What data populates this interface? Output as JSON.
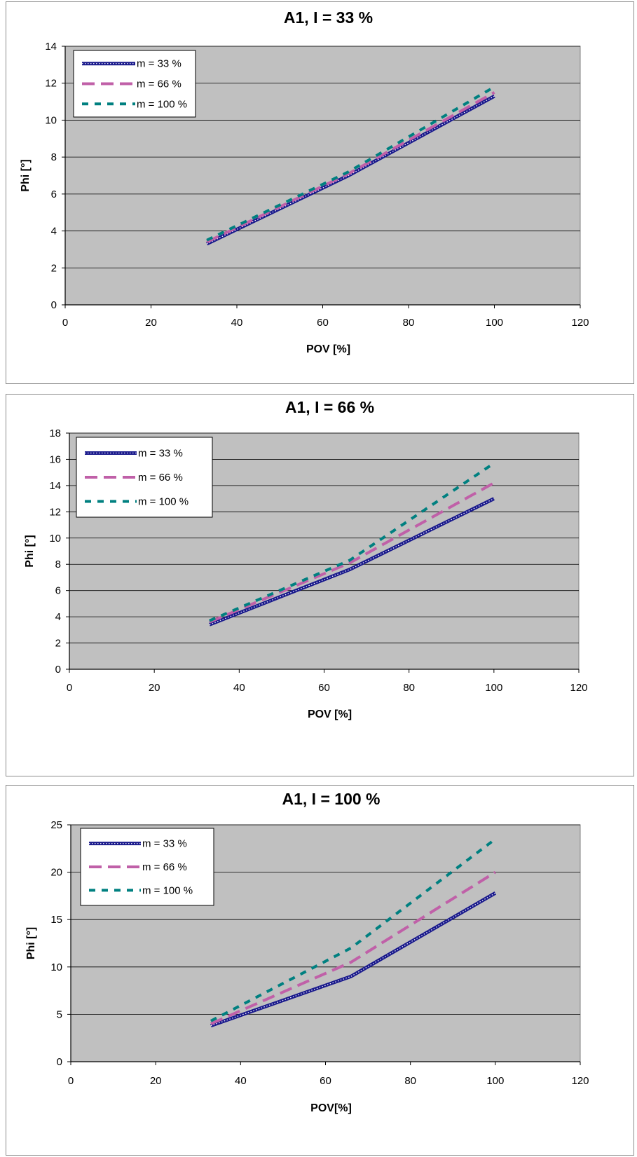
{
  "chart_data": [
    {
      "type": "line",
      "title": "A1, I = 33 %",
      "xlabel": "POV [%]",
      "ylabel": "Phi [°]",
      "xlim": [
        0,
        120
      ],
      "ylim": [
        0,
        14
      ],
      "xticks": [
        "0",
        "20",
        "40",
        "60",
        "80",
        "100",
        "120"
      ],
      "yticks": [
        "0",
        "2",
        "4",
        "6",
        "8",
        "10",
        "12",
        "14"
      ],
      "grid": true,
      "legend": "top-left",
      "series": [
        {
          "name": "m = 33 %",
          "color": "#1a1a8c",
          "x": [
            33,
            66,
            100
          ],
          "y": [
            3.3,
            7.0,
            11.3
          ]
        },
        {
          "name": "m = 66 %",
          "color": "#c060a8",
          "x": [
            33,
            66,
            100
          ],
          "y": [
            3.4,
            7.1,
            11.5
          ]
        },
        {
          "name": "m = 100 %",
          "color": "#008080",
          "x": [
            33,
            66,
            100
          ],
          "y": [
            3.5,
            7.2,
            11.8
          ]
        }
      ]
    },
    {
      "type": "line",
      "title": "A1,  I = 66 %",
      "xlabel": "POV [%]",
      "ylabel": "Phi [°]",
      "xlim": [
        0,
        120
      ],
      "ylim": [
        0,
        18
      ],
      "xticks": [
        "0",
        "20",
        "40",
        "60",
        "80",
        "100",
        "120"
      ],
      "yticks": [
        "0",
        "2",
        "4",
        "6",
        "8",
        "10",
        "12",
        "14",
        "16",
        "18"
      ],
      "grid": true,
      "legend": "top-left",
      "series": [
        {
          "name": "m = 33 %",
          "color": "#1a1a8c",
          "x": [
            33,
            66,
            100
          ],
          "y": [
            3.4,
            7.6,
            13.0
          ]
        },
        {
          "name": "m = 66 %",
          "color": "#c060a8",
          "x": [
            33,
            66,
            100
          ],
          "y": [
            3.6,
            8.1,
            14.2
          ]
        },
        {
          "name": "m = 100 %",
          "color": "#008080",
          "x": [
            33,
            66,
            100
          ],
          "y": [
            3.7,
            8.3,
            15.7
          ]
        }
      ]
    },
    {
      "type": "line",
      "title": "A1,  I = 100 %",
      "xlabel": "POV[%]",
      "ylabel": "Phi [°]",
      "xlim": [
        0,
        120
      ],
      "ylim": [
        0,
        25
      ],
      "xticks": [
        "0",
        "20",
        "40",
        "60",
        "80",
        "100",
        "120"
      ],
      "yticks": [
        "0",
        "5",
        "10",
        "15",
        "20",
        "25"
      ],
      "grid": true,
      "legend": "top-left",
      "series": [
        {
          "name": "m = 33 %",
          "color": "#1a1a8c",
          "x": [
            33,
            66,
            100
          ],
          "y": [
            3.8,
            9.0,
            17.8
          ]
        },
        {
          "name": "m = 66 %",
          "color": "#c060a8",
          "x": [
            33,
            66,
            100
          ],
          "y": [
            4.0,
            10.5,
            20.0
          ]
        },
        {
          "name": "m = 100 %",
          "color": "#008080",
          "x": [
            33,
            66,
            100
          ],
          "y": [
            4.3,
            12.0,
            23.5
          ]
        }
      ]
    }
  ]
}
